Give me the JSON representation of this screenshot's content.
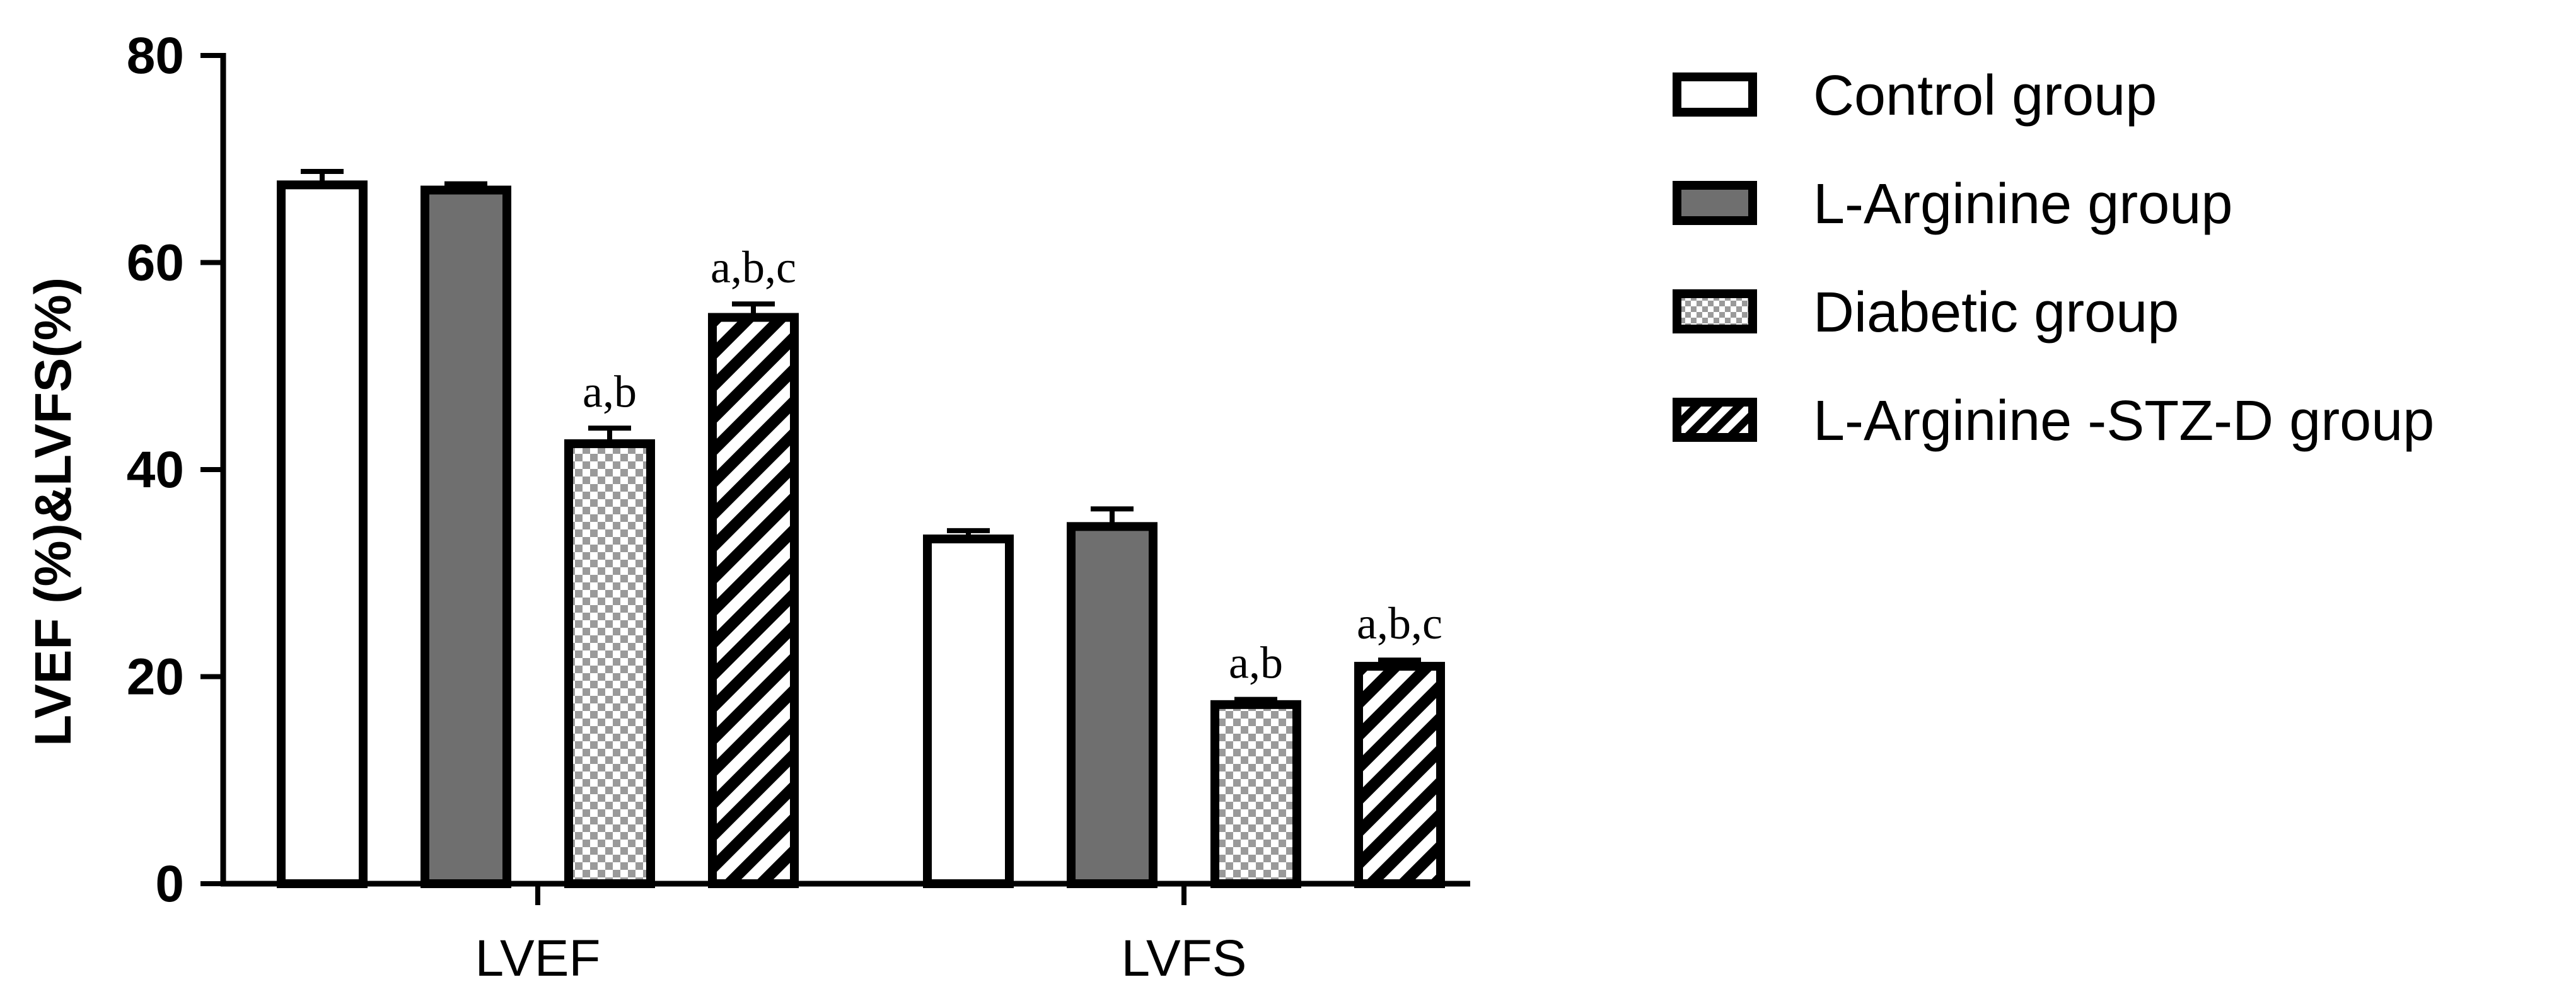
{
  "chart_data": {
    "type": "bar",
    "title": "",
    "xlabel": "",
    "ylabel": "LVEF (%)&LVFS(%)",
    "ylim": [
      0,
      80
    ],
    "yticks": [
      "0",
      "20",
      "40",
      "60",
      "80"
    ],
    "categories": [
      "LVEF",
      "LVFS"
    ],
    "grid": false,
    "legend_position": "right",
    "series": [
      {
        "name": "Control group",
        "pattern": "white",
        "values": [
          67.5,
          33.3
        ],
        "errors": [
          1.3,
          0.8
        ],
        "sig_labels": [
          "",
          ""
        ]
      },
      {
        "name": "L-Arginine group",
        "pattern": "gray",
        "values": [
          67.0,
          34.5
        ],
        "errors": [
          0.6,
          1.7
        ],
        "sig_labels": [
          "",
          ""
        ]
      },
      {
        "name": "Diabetic group",
        "pattern": "checker",
        "values": [
          42.5,
          17.3
        ],
        "errors": [
          1.5,
          0.5
        ],
        "sig_labels": [
          "a,b",
          "a,b"
        ]
      },
      {
        "name": "L-Arginine -STZ-D group",
        "pattern": "diagonal",
        "values": [
          54.7,
          21.0
        ],
        "errors": [
          1.3,
          0.6
        ],
        "sig_labels": [
          "a,b,c",
          "a,b,c"
        ]
      }
    ],
    "colors": {
      "gray_fill": "#6f6f6f",
      "checker_dark": "#9a9a9a",
      "checker_light": "#ffffff",
      "stroke": "#000000"
    }
  }
}
